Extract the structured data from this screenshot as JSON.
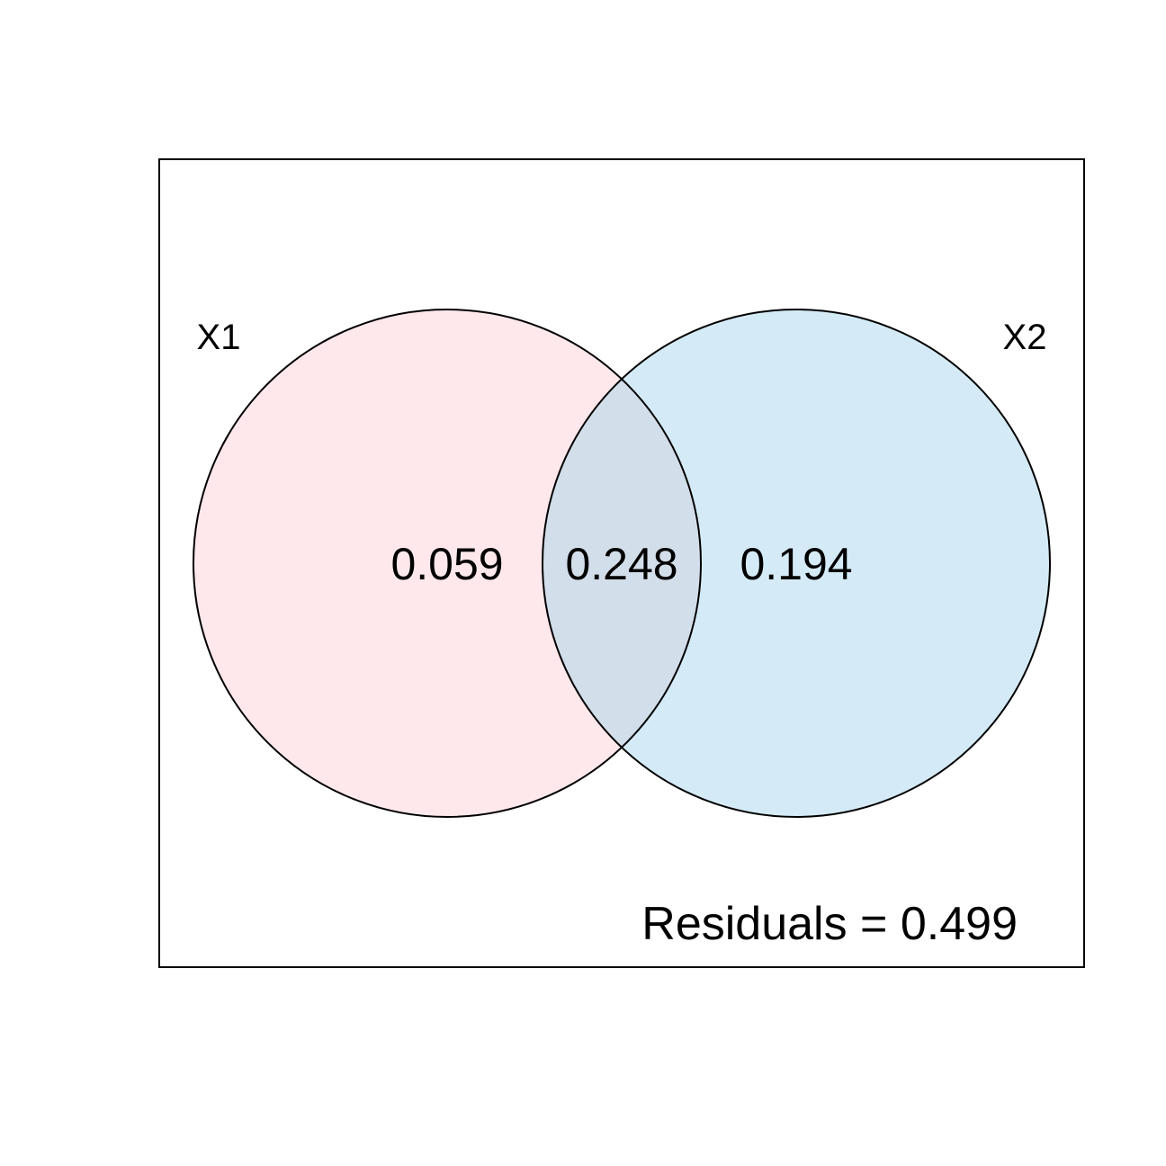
{
  "diagram": {
    "type": "venn",
    "sets": [
      {
        "name": "X1",
        "color": "#FFE8EC"
      },
      {
        "name": "X2",
        "color": "#D4EBF7"
      }
    ],
    "overlap_color": "#D2DEEA",
    "regions": {
      "x1_only": "0.059",
      "overlap": "0.248",
      "x2_only": "0.194"
    },
    "residuals_text": "Residuals = 0.499"
  }
}
